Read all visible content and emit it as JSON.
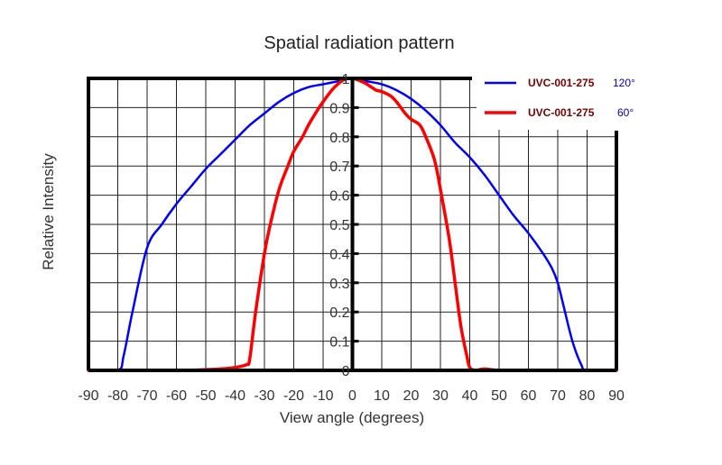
{
  "chart_data": {
    "type": "line",
    "title": "Spatial radiation pattern",
    "xlabel": "View angle (degrees)",
    "ylabel": "Relative Intensity",
    "xlim": [
      -90,
      90
    ],
    "ylim": [
      0,
      1
    ],
    "x_ticks": [
      "-90",
      "-80",
      "-70",
      "-60",
      "-50",
      "-40",
      "-30",
      "-20",
      "-10",
      "0",
      "10",
      "20",
      "30",
      "40",
      "50",
      "60",
      "70",
      "80",
      "90"
    ],
    "y_ticks": [
      "0",
      "0.1",
      "0.2",
      "0.3",
      "0.4",
      "0.5",
      "0.6",
      "0.7",
      "0.8",
      "0.9",
      "1"
    ],
    "grid": true,
    "legend_position": "top-right",
    "series": [
      {
        "name": "UVC-001-275",
        "angle": "120°",
        "color": "#0000ff",
        "x": [
          -90,
          -80,
          -78,
          -75,
          -70,
          -65,
          -60,
          -55,
          -50,
          -45,
          -40,
          -35,
          -30,
          -25,
          -20,
          -15,
          -10,
          -5,
          0,
          5,
          10,
          15,
          20,
          25,
          30,
          35,
          40,
          45,
          50,
          55,
          60,
          65,
          68,
          70,
          72,
          75,
          78,
          80,
          90
        ],
        "y": [
          0,
          0,
          0.05,
          0.2,
          0.42,
          0.5,
          0.57,
          0.63,
          0.69,
          0.74,
          0.79,
          0.84,
          0.88,
          0.92,
          0.95,
          0.97,
          0.98,
          0.99,
          1,
          0.99,
          0.98,
          0.96,
          0.93,
          0.89,
          0.84,
          0.78,
          0.73,
          0.67,
          0.6,
          0.53,
          0.47,
          0.4,
          0.35,
          0.3,
          0.22,
          0.1,
          0.02,
          0,
          0
        ]
      },
      {
        "name": "UVC-001-275",
        "angle": "60°",
        "color": "#ff0000",
        "x": [
          -90,
          -60,
          -45,
          -40,
          -36,
          -35,
          -33,
          -30,
          -28,
          -25,
          -22,
          -20,
          -17,
          -15,
          -12,
          -10,
          -7,
          -5,
          -3,
          0,
          3,
          5,
          8,
          10,
          13,
          15,
          18,
          20,
          23,
          25,
          28,
          30,
          33,
          35,
          37,
          39,
          40,
          42,
          45,
          50,
          60,
          90
        ],
        "y": [
          0,
          0,
          0.005,
          0.01,
          0.02,
          0.04,
          0.2,
          0.4,
          0.5,
          0.62,
          0.7,
          0.75,
          0.8,
          0.84,
          0.89,
          0.92,
          0.96,
          0.98,
          0.995,
          1,
          0.99,
          0.98,
          0.96,
          0.955,
          0.94,
          0.92,
          0.88,
          0.86,
          0.84,
          0.8,
          0.72,
          0.62,
          0.45,
          0.3,
          0.15,
          0.05,
          0.01,
          0,
          0.005,
          0,
          0,
          0
        ]
      }
    ]
  }
}
